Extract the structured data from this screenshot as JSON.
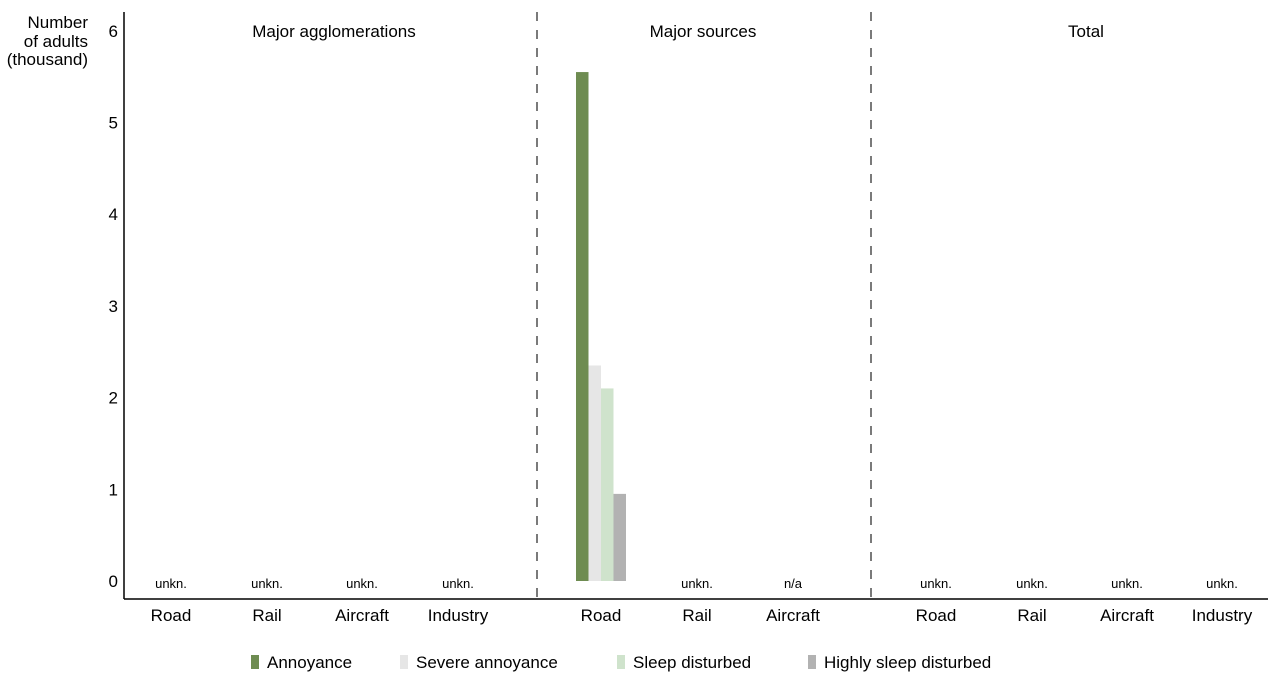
{
  "chart_data": {
    "type": "bar",
    "ylabel": [
      "Number",
      "of adults",
      "(thousand)"
    ],
    "ylim": [
      0,
      6
    ],
    "yticks": [
      0,
      1,
      2,
      3,
      4,
      5,
      6
    ],
    "grid": false,
    "legend_position": "bottom",
    "series": [
      {
        "name": "Annoyance",
        "color": "#6e8c51"
      },
      {
        "name": "Severe annoyance",
        "color": "#e6e6e6"
      },
      {
        "name": "Sleep disturbed",
        "color": "#cfe3cc"
      },
      {
        "name": "Highly sleep disturbed",
        "color": "#b2b2b2"
      }
    ],
    "panels": [
      {
        "title": "Major agglomerations",
        "categories": [
          {
            "label": "Road",
            "values": null,
            "note": "unkn."
          },
          {
            "label": "Rail",
            "values": null,
            "note": "unkn."
          },
          {
            "label": "Aircraft",
            "values": null,
            "note": "unkn."
          },
          {
            "label": "Industry",
            "values": null,
            "note": "unkn."
          }
        ]
      },
      {
        "title": "Major sources",
        "categories": [
          {
            "label": "Road",
            "values": [
              5.55,
              2.35,
              2.1,
              0.95
            ],
            "note": ""
          },
          {
            "label": "Rail",
            "values": null,
            "note": "unkn."
          },
          {
            "label": "Aircraft",
            "values": null,
            "note": "n/a"
          }
        ]
      },
      {
        "title": "Total",
        "categories": [
          {
            "label": "Road",
            "values": null,
            "note": "unkn."
          },
          {
            "label": "Rail",
            "values": null,
            "note": "unkn."
          },
          {
            "label": "Aircraft",
            "values": null,
            "note": "unkn."
          },
          {
            "label": "Industry",
            "values": null,
            "note": "unkn."
          }
        ]
      }
    ]
  }
}
